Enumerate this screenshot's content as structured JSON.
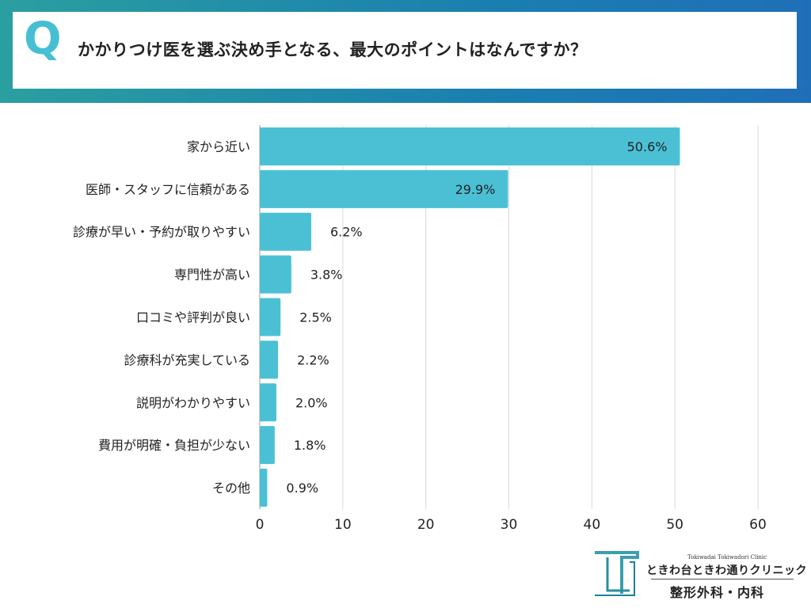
{
  "question": {
    "letter": "Q",
    "text": "かかりつけ医を選ぶ決め手となる、最大のポイントはなんですか？"
  },
  "colors": {
    "bar": "#4bc0d5",
    "grid": "#d9d9d9",
    "banner_start": "#2a9fa0",
    "banner_end": "#1f6fb8"
  },
  "chart_data": {
    "type": "bar",
    "orientation": "horizontal",
    "categories": [
      "家から近い",
      "医師・スタッフに信頼がある",
      "診療が早い・予約が取りやすい",
      "専門性が高い",
      "口コミや評判が良い",
      "診療科が充実している",
      "説明がわかりやすい",
      "費用が明確・負担が少ない",
      "その他"
    ],
    "values": [
      50.6,
      29.9,
      6.2,
      3.8,
      2.5,
      2.2,
      2.0,
      1.8,
      0.9
    ],
    "value_labels": [
      "50.6%",
      "29.9%",
      "6.2%",
      "3.8%",
      "2.5%",
      "2.2%",
      "2.0%",
      "1.8%",
      "0.9%"
    ],
    "xlim": [
      0,
      60
    ],
    "xticks": [
      "0",
      "10",
      "20",
      "30",
      "40",
      "50",
      "60"
    ],
    "grid": true
  },
  "logo": {
    "en": "Tokiwadai Tokiwadori Clinic",
    "ja": "ときわ台ときわ通りクリニック",
    "dept": "整形外科・内科"
  }
}
